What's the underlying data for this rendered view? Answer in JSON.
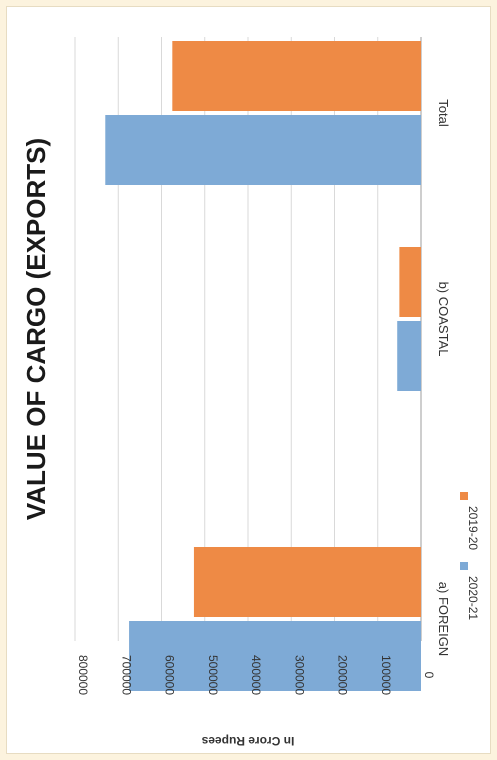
{
  "chart_data": {
    "type": "bar",
    "title": "VALUE OF CARGO (EXPORTS)",
    "ylabel": "In Crore Rupees",
    "xlabel": "",
    "categories": [
      "a) FOREIGN",
      "b) COASTAL",
      "Total"
    ],
    "series": [
      {
        "name": "2020-21",
        "color": "#7eaad6",
        "values": [
          675000,
          55000,
          730000
        ]
      },
      {
        "name": "2019-20",
        "color": "#ee8a45",
        "values": [
          525000,
          50000,
          575000
        ]
      }
    ],
    "ylim": [
      0,
      800000
    ],
    "yticks": [
      0,
      100000,
      200000,
      300000,
      400000,
      500000,
      600000,
      700000,
      800000
    ],
    "grid": true,
    "legend": "bottom",
    "orientation": "rotated"
  }
}
